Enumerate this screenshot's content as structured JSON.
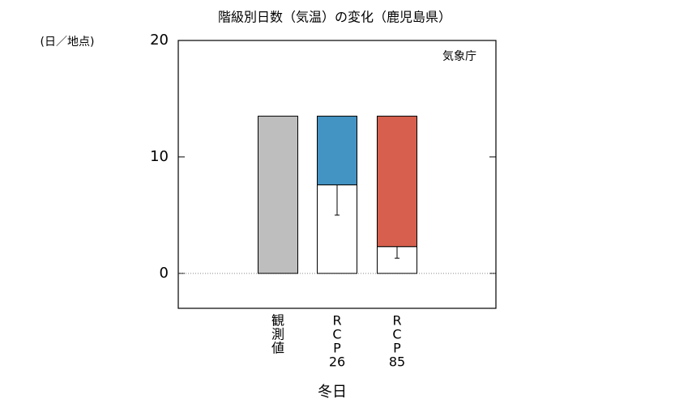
{
  "chart_data": {
    "type": "bar",
    "title": "階級別日数（気温）の変化（鹿児島県）",
    "y_unit": "(日／地点)",
    "source": "気象庁",
    "xlabel": "冬日",
    "categories": [
      [
        "観",
        "測",
        "値"
      ],
      [
        "R",
        "C",
        "P",
        "26"
      ],
      [
        "R",
        "C",
        "P",
        "85"
      ]
    ],
    "series": [
      {
        "color": "#bebebe",
        "values": [
          13.5,
          null,
          null
        ]
      },
      {
        "color": "#ffffff",
        "values": [
          null,
          7.6,
          2.3
        ],
        "error": [
          null,
          2.6,
          1.0
        ]
      },
      {
        "color": "#4393c3",
        "values": [
          null,
          5.9,
          null
        ]
      },
      {
        "color": "#d6604d",
        "values": [
          null,
          null,
          11.2
        ]
      }
    ],
    "ylim": [
      -3,
      20
    ],
    "yticks": [
      0,
      10,
      20
    ],
    "zero_line": true
  }
}
